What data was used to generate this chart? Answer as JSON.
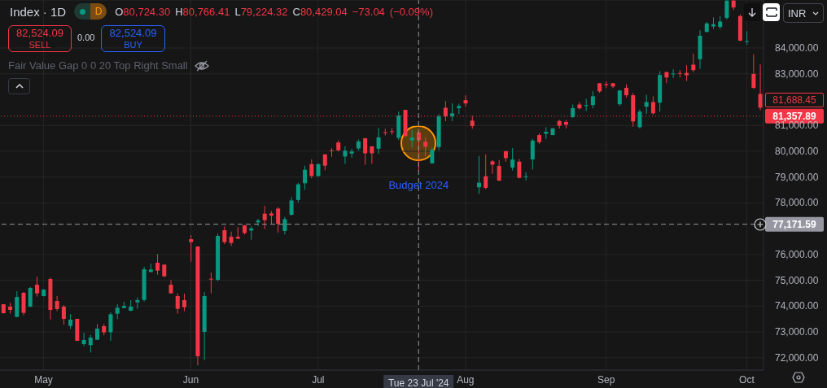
{
  "chart_data": {
    "type": "candlestick",
    "title": "Index · 1D",
    "annotations": [
      "D",
      "O80,724.30 H80,766.41 L79,224.32 C80,429.04 −73.04 (−0.09%)",
      "82,524.09",
      "SELL",
      "0.00",
      "82,524.09",
      "BUY",
      "Fair Value Gap 0 0 20 Top Right Small",
      "INR",
      "81,688.45",
      {
        "text": "Budget 2024",
        "x": "Tue 23 Jul '24",
        "y": 78700
      }
    ],
    "categories": [
      null,
      null,
      null,
      null,
      null,
      null,
      "May",
      null,
      null,
      null,
      null,
      null,
      null,
      null,
      null,
      null,
      null,
      null,
      null,
      null,
      null,
      null,
      null,
      null,
      null,
      null,
      null,
      null,
      "Jun",
      null,
      null,
      null,
      null,
      null,
      null,
      null,
      null,
      null,
      null,
      null,
      null,
      null,
      null,
      null,
      null,
      null,
      null,
      "Jul",
      null,
      null,
      null,
      null,
      null,
      null,
      null,
      null,
      null,
      null,
      null,
      null,
      null,
      null,
      "Tue 23 Jul '24",
      null,
      null,
      null,
      null,
      null,
      null,
      "Aug",
      null,
      null,
      null,
      null,
      null,
      null,
      null,
      null,
      null,
      null,
      null,
      null,
      null,
      null,
      null,
      null,
      null,
      null,
      null,
      null,
      "Sep",
      null,
      null,
      null,
      null,
      null,
      null,
      null,
      null,
      null,
      null,
      null,
      null,
      null,
      null,
      null,
      null,
      null,
      null,
      null,
      null,
      "Oct",
      null,
      null
    ],
    "ohlc": [
      [
        74073,
        74080,
        73705,
        73727
      ],
      [
        73978,
        74125,
        73705,
        73852
      ],
      [
        73580,
        74577,
        73580,
        74356
      ],
      [
        74514,
        74545,
        73643,
        73737
      ],
      [
        73978,
        74745,
        73958,
        74703
      ],
      [
        74829,
        75144,
        74367,
        74493
      ],
      [
        74388,
        74650,
        74370,
        74640
      ],
      [
        75050,
        75102,
        73485,
        73852
      ],
      [
        74199,
        74388,
        73810,
        73884
      ],
      [
        73978,
        74041,
        73285,
        73506
      ],
      [
        73233,
        73695,
        73107,
        73474
      ],
      [
        73506,
        73506,
        72655,
        72655
      ],
      [
        72529,
        72970,
        72445,
        72687
      ],
      [
        72487,
        72886,
        72200,
        72781
      ],
      [
        72697,
        73306,
        72697,
        73128
      ],
      [
        73222,
        73317,
        72865,
        72981
      ],
      [
        72991,
        73758,
        72655,
        73684
      ],
      [
        73705,
        74073,
        73495,
        73936
      ],
      [
        73926,
        74167,
        73926,
        74010
      ],
      [
        73820,
        74230,
        73810,
        73978
      ],
      [
        74146,
        74335,
        73894,
        74230
      ],
      [
        74241,
        75522,
        74178,
        75427
      ],
      [
        75322,
        75648,
        75301,
        75417
      ],
      [
        75679,
        76015,
        75217,
        75375
      ],
      [
        75606,
        75616,
        75123,
        75154
      ],
      [
        74829,
        75007,
        74493,
        74493
      ],
      [
        74388,
        74493,
        73705,
        73894
      ],
      [
        74230,
        74482,
        73800,
        73957
      ],
      [
        76593,
        76750,
        75721,
        76478
      ],
      [
        76310,
        76310,
        71700,
        72057
      ],
      [
        72999,
        74545,
        71910,
        74388
      ],
      [
        75060,
        75301,
        74493,
        75040
      ],
      [
        75018,
        76803,
        74965,
        76719
      ],
      [
        76939,
        77086,
        76404,
        76478
      ],
      [
        76688,
        76887,
        76330,
        76447
      ],
      [
        76688,
        77065,
        76593,
        76614
      ],
      [
        77128,
        77149,
        76771,
        76834
      ],
      [
        76929,
        77086,
        76572,
        77012
      ],
      [
        77244,
        77380,
        77107,
        77317
      ],
      [
        77580,
        77884,
        76981,
        77328
      ],
      [
        77590,
        77684,
        77193,
        77506
      ],
      [
        77778,
        77840,
        76848,
        77193
      ],
      [
        76911,
        77454,
        76775,
        77371
      ],
      [
        77538,
        78217,
        77506,
        78092
      ],
      [
        78112,
        78781,
        78008,
        78719
      ],
      [
        78760,
        79440,
        78510,
        79283
      ],
      [
        79502,
        79690,
        78949,
        79043
      ],
      [
        79043,
        79520,
        79000,
        79502
      ],
      [
        79879,
        79879,
        79262,
        79440
      ],
      [
        80036,
        80119,
        79785,
        80015
      ],
      [
        80338,
        80422,
        79994,
        80036
      ],
      [
        79795,
        80192,
        79513,
        80025
      ],
      [
        79910,
        80098,
        79753,
        79994
      ],
      [
        80109,
        80453,
        80036,
        80380
      ],
      [
        80506,
        80506,
        79471,
        79920
      ],
      [
        80192,
        80192,
        79513,
        79920
      ],
      [
        80098,
        80903,
        79889,
        80537
      ],
      [
        80736,
        80871,
        80610,
        80715
      ],
      [
        80777,
        80903,
        80641,
        80757
      ],
      [
        80516,
        81540,
        80432,
        81383
      ],
      [
        81603,
        81603,
        80537,
        80589
      ],
      [
        80422,
        80809,
        80140,
        80527
      ],
      [
        80724.3,
        80766.41,
        79224.32,
        80429.04
      ],
      [
        80370,
        80537,
        79805,
        80171
      ],
      [
        79533,
        80150,
        79513,
        80056
      ],
      [
        80161,
        81436,
        80036,
        81352
      ],
      [
        81686,
        81948,
        81164,
        81352
      ],
      [
        81352,
        81854,
        81164,
        81467
      ],
      [
        81666,
        81843,
        81446,
        81750
      ],
      [
        81979,
        82167,
        81728,
        81854
      ],
      [
        81185,
        81373,
        80871,
        80976
      ],
      [
        78604,
        79816,
        78343,
        78781
      ],
      [
        79032,
        79878,
        78530,
        78583
      ],
      [
        79607,
        79659,
        79126,
        79482
      ],
      [
        79429,
        79659,
        78844,
        78865
      ],
      [
        80004,
        80004,
        79597,
        79732
      ],
      [
        79367,
        80129,
        79252,
        79680
      ],
      [
        79596,
        79701,
        78949,
        78969
      ],
      [
        79000,
        79186,
        78869,
        79030
      ],
      [
        79683,
        80477,
        79292,
        80413
      ],
      [
        80625,
        80688,
        80286,
        80350
      ],
      [
        80678,
        80932,
        80477,
        80752
      ],
      [
        80625,
        80890,
        80625,
        80890
      ],
      [
        81175,
        81218,
        80879,
        80985
      ],
      [
        81133,
        81218,
        80879,
        81027
      ],
      [
        81323,
        81810,
        81292,
        81673
      ],
      [
        81810,
        81905,
        81620,
        81662
      ],
      [
        81768,
        82032,
        81556,
        81788
      ],
      [
        81789,
        82318,
        81662,
        82128
      ],
      [
        82635,
        82635,
        82265,
        82318
      ],
      [
        82600,
        82700,
        82450,
        82560
      ],
      [
        82635,
        82635,
        82445,
        82508
      ],
      [
        81821,
        82380,
        81760,
        82350
      ],
      [
        82455,
        82593,
        82085,
        82170
      ],
      [
        82170,
        82254,
        80953,
        81154
      ],
      [
        80932,
        81620,
        80879,
        81535
      ],
      [
        81725,
        82191,
        81450,
        81905
      ],
      [
        81905,
        82128,
        81419,
        81471
      ],
      [
        81884,
        83101,
        81535,
        82953
      ],
      [
        83069,
        83069,
        82646,
        82857
      ],
      [
        82990,
        83175,
        82836,
        83010
      ],
      [
        83030,
        83143,
        82857,
        83000
      ],
      [
        83037,
        83333,
        82720,
        82942
      ],
      [
        83355,
        83778,
        83069,
        83143
      ],
      [
        83566,
        84688,
        83196,
        84476
      ],
      [
        84624,
        85005,
        84603,
        84952
      ],
      [
        84836,
        85185,
        84740,
        84920
      ],
      [
        84815,
        85238,
        84740,
        85026
      ],
      [
        85170,
        85850,
        85100,
        85836
      ],
      [
        85840,
        85855,
        85474,
        85571
      ],
      [
        85238,
        85300,
        84257,
        84286
      ],
      [
        84260,
        84656,
        84127,
        84270
      ],
      [
        82995,
        83757,
        82413,
        82455
      ],
      [
        82223,
        83365,
        81589,
        81690
      ]
    ],
    "ylim": [
      71520,
      85860
    ],
    "yticks": [
      {
        "value": 72000,
        "label": "72,000.00"
      },
      {
        "value": 73000,
        "label": "73,000.00"
      },
      {
        "value": 74000,
        "label": "74,000.00"
      },
      {
        "value": 75000,
        "label": "75,000.00"
      },
      {
        "value": 76000,
        "label": "76,000.00"
      },
      {
        "value": 78000,
        "label": "78,000.00"
      },
      {
        "value": 79000,
        "label": "79,000.00"
      },
      {
        "value": 80000,
        "label": "80,000.00"
      },
      {
        "value": 81000,
        "label": "81,000.00"
      },
      {
        "value": 83000,
        "label": "83,000.00"
      },
      {
        "value": 84000,
        "label": "84,000.00"
      }
    ],
    "grid": true,
    "ref_lines": [
      {
        "axis": "y",
        "value": 81357.89,
        "label": "81,357.89",
        "color": "#f23645",
        "line_style": "dotted"
      },
      {
        "axis": "y",
        "value": 77171.59,
        "label": "77,171.59",
        "color": "#9598a1",
        "line_style": "dashed"
      },
      {
        "axis": "x",
        "value": "Tue 23 Jul '24",
        "color": "#9598a1",
        "line_style": "dashed"
      }
    ]
  }
}
